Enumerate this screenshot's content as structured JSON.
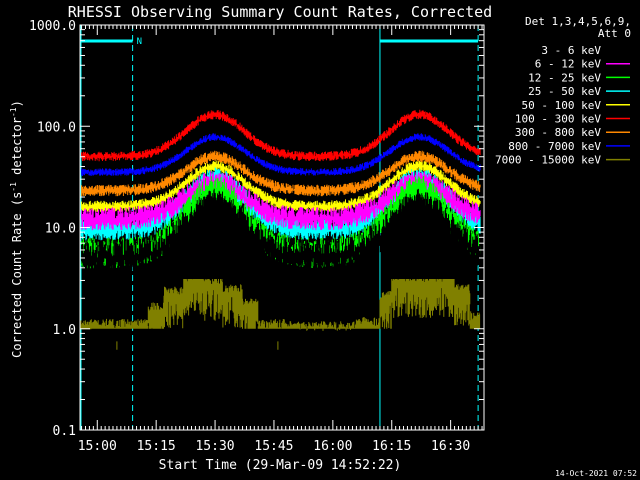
{
  "chart_data": {
    "type": "line",
    "title": "RHESSI Observing Summary Count Rates, Corrected",
    "xlabel": "Start Time (29-Mar-09 14:52:22)",
    "ylabel_main": "Corrected Count Rate (s",
    "ylabel_sup1": "-1",
    "ylabel_mid": " detector",
    "ylabel_sup2": "-1",
    "ylabel_end": ")",
    "y_scale": "log",
    "ylim": [
      0.1,
      1000
    ],
    "xlim_minutes": [
      -4.4,
      98.5
    ],
    "x_origin": "15:00",
    "x_ticks": [
      {
        "m": 0,
        "label": "15:00"
      },
      {
        "m": 15,
        "label": "15:15"
      },
      {
        "m": 30,
        "label": "15:30"
      },
      {
        "m": 45,
        "label": "15:45"
      },
      {
        "m": 60,
        "label": "16:00"
      },
      {
        "m": 75,
        "label": "16:15"
      },
      {
        "m": 90,
        "label": "16:30"
      }
    ],
    "y_ticks": [
      {
        "v": 1000,
        "label": "1000.0"
      },
      {
        "v": 100,
        "label": "100.0"
      },
      {
        "v": 10,
        "label": "10.0"
      },
      {
        "v": 1,
        "label": "1.0"
      },
      {
        "v": 0.1,
        "label": "0.1"
      }
    ],
    "legend": {
      "position": "right",
      "header1": "Det 1,3,4,5,6,9,",
      "header2": "Att 0"
    },
    "series": [
      {
        "name": "3 - 6 keV",
        "color": "#000000",
        "line_color": "#000000",
        "min": 5.0,
        "max": 16.0,
        "noise": 0.18
      },
      {
        "name": "6 - 12 keV",
        "color": "#ff00ff",
        "line_color": "#ff00ff",
        "min": 12.0,
        "max": 28.0,
        "noise": 0.12
      },
      {
        "name": "12 - 25 keV",
        "color": "#00ff00",
        "line_color": "#00ff00",
        "min": 5.5,
        "max": 23.0,
        "noise": 0.16
      },
      {
        "name": "25 - 50 keV",
        "color": "#00ffff",
        "line_color": "#00ffff",
        "min": 9.5,
        "max": 30.0,
        "noise": 0.12
      },
      {
        "name": "50 - 100 keV",
        "color": "#ffff00",
        "line_color": "#ffff00",
        "min": 16.0,
        "max": 40.0,
        "noise": 0.06
      },
      {
        "name": "100 - 300 keV",
        "color": "#ff0000",
        "line_color": "#ff0000",
        "min": 50.0,
        "max": 130.0,
        "noise": 0.05
      },
      {
        "name": "300 - 800 keV",
        "color": "#ff8800",
        "line_color": "#ff8800",
        "min": 23.0,
        "max": 50.0,
        "noise": 0.06
      },
      {
        "name": "800 - 7000 keV",
        "color": "#0000ff",
        "line_color": "#0000ff",
        "min": 35.0,
        "max": 78.0,
        "noise": 0.04
      },
      {
        "name": "7000 - 15000 keV",
        "color": "#808000",
        "line_color": "#808000",
        "min": 1.0,
        "max": 3.0,
        "noise": 0.0
      }
    ],
    "peaks_minutes": [
      30,
      82
    ],
    "night_bars": [
      {
        "start": -4.4,
        "end": 9,
        "label": "N"
      },
      {
        "start": 72,
        "end": 97,
        "label": ""
      }
    ],
    "dashed_markers_minutes": [
      9,
      97
    ],
    "solid_markers_minutes": [
      -4.4,
      72
    ],
    "colors": {
      "background": "#000000",
      "axes": "#ffffff",
      "markers": "#00ffff"
    }
  },
  "footer": {
    "timestamp": "14-Oct-2021 07:52"
  }
}
